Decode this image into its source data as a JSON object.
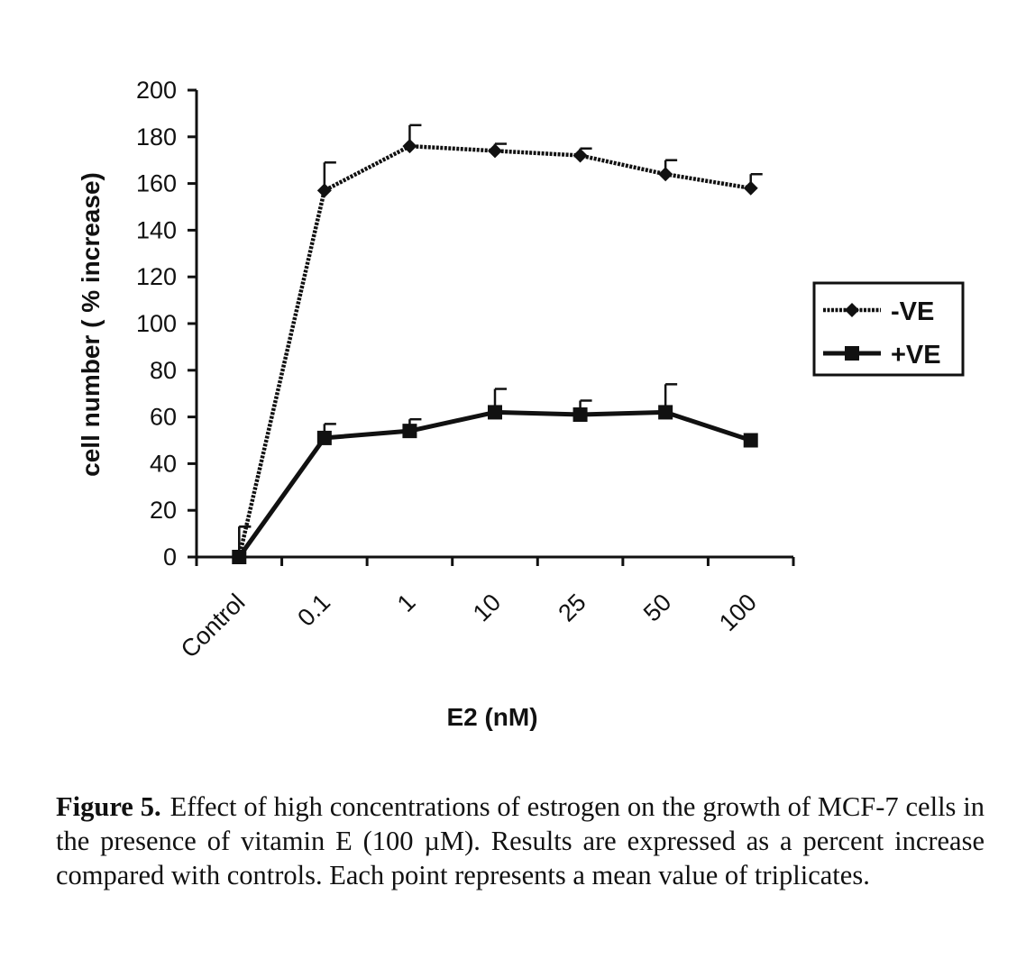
{
  "chart_data": {
    "type": "line",
    "categories": [
      "Control",
      "0.1",
      "1",
      "10",
      "25",
      "50",
      "100"
    ],
    "series": [
      {
        "name": "-VE",
        "marker": "diamond",
        "style": "dotted",
        "values": [
          0,
          157,
          176,
          174,
          172,
          164,
          158
        ],
        "errors": [
          13,
          12,
          9,
          3,
          3,
          6,
          6
        ]
      },
      {
        "name": "+VE",
        "marker": "square",
        "style": "solid",
        "values": [
          0,
          51,
          54,
          62,
          61,
          62,
          50
        ],
        "errors": [
          13,
          6,
          5,
          10,
          6,
          12,
          0
        ]
      }
    ],
    "ylim": [
      0,
      200
    ],
    "yticks": [
      0,
      20,
      40,
      60,
      80,
      100,
      120,
      140,
      160,
      180,
      200
    ],
    "xlabel": "E2 (nM)",
    "ylabel": "cell number ( % increase)",
    "legend_position": "right",
    "color": "#111111"
  },
  "caption": {
    "label": "Figure 5.",
    "text": "Effect of high concentrations of estrogen on the growth of MCF-7 cells in the presence of vitamin E (100 µM). Results are expressed as a percent increase compared with controls. Each point represents a mean value of triplicates."
  }
}
